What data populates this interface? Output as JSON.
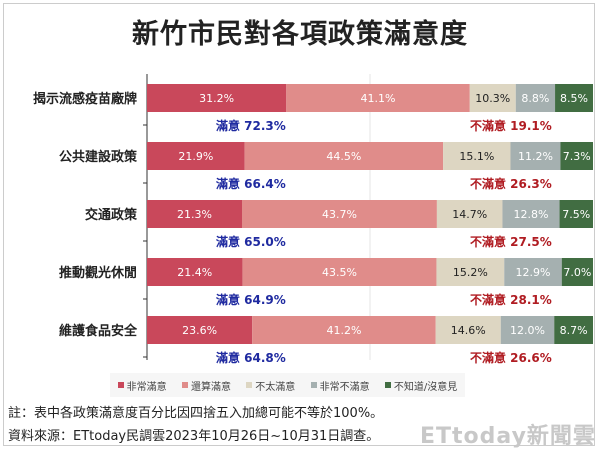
{
  "chart_data": {
    "type": "bar",
    "orientation": "horizontal",
    "stacked": true,
    "title": "新竹市民對各項政策滿意度",
    "categories": [
      "揭示流感疫苗廠牌",
      "公共建設政策",
      "交通政策",
      "推動觀光休閒",
      "維護食品安全"
    ],
    "series": [
      {
        "name": "非常滿意",
        "color": "#c9485b",
        "values": [
          31.2,
          21.9,
          21.3,
          21.4,
          23.6
        ]
      },
      {
        "name": "還算滿意",
        "color": "#e08c8a",
        "values": [
          41.1,
          44.5,
          43.7,
          43.5,
          41.2
        ]
      },
      {
        "name": "不太滿意",
        "color": "#ddd6c2",
        "values": [
          10.3,
          15.1,
          14.7,
          15.2,
          14.6
        ]
      },
      {
        "name": "非常不滿意",
        "color": "#a5b0b0",
        "values": [
          8.8,
          11.2,
          12.8,
          12.9,
          12.0
        ]
      },
      {
        "name": "不知道/沒意見",
        "color": "#416d42",
        "values": [
          8.5,
          7.3,
          7.5,
          7.0,
          8.7
        ]
      }
    ],
    "satisfied_label": "滿意",
    "satisfied": [
      "72.3%",
      "66.4%",
      "65.0%",
      "64.9%",
      "64.8%"
    ],
    "dissatisfied_label": "不滿意",
    "dissatisfied": [
      "19.1%",
      "26.3%",
      "27.5%",
      "28.1%",
      "26.6%"
    ],
    "xlim": [
      0,
      100
    ],
    "grid": true,
    "legend_position": "bottom"
  },
  "colors": {
    "satisfied_text": "#1f2aa0",
    "dissatisfied_text": "#b01c22"
  },
  "footer": {
    "note": "註：表中各政策滿意度百分比因四捨五入加總可能不等於100%。",
    "source": "資料來源：ETtoday民調雲2023年10月26日~10月31日調查。"
  },
  "watermark": "ETtoday新聞雲"
}
